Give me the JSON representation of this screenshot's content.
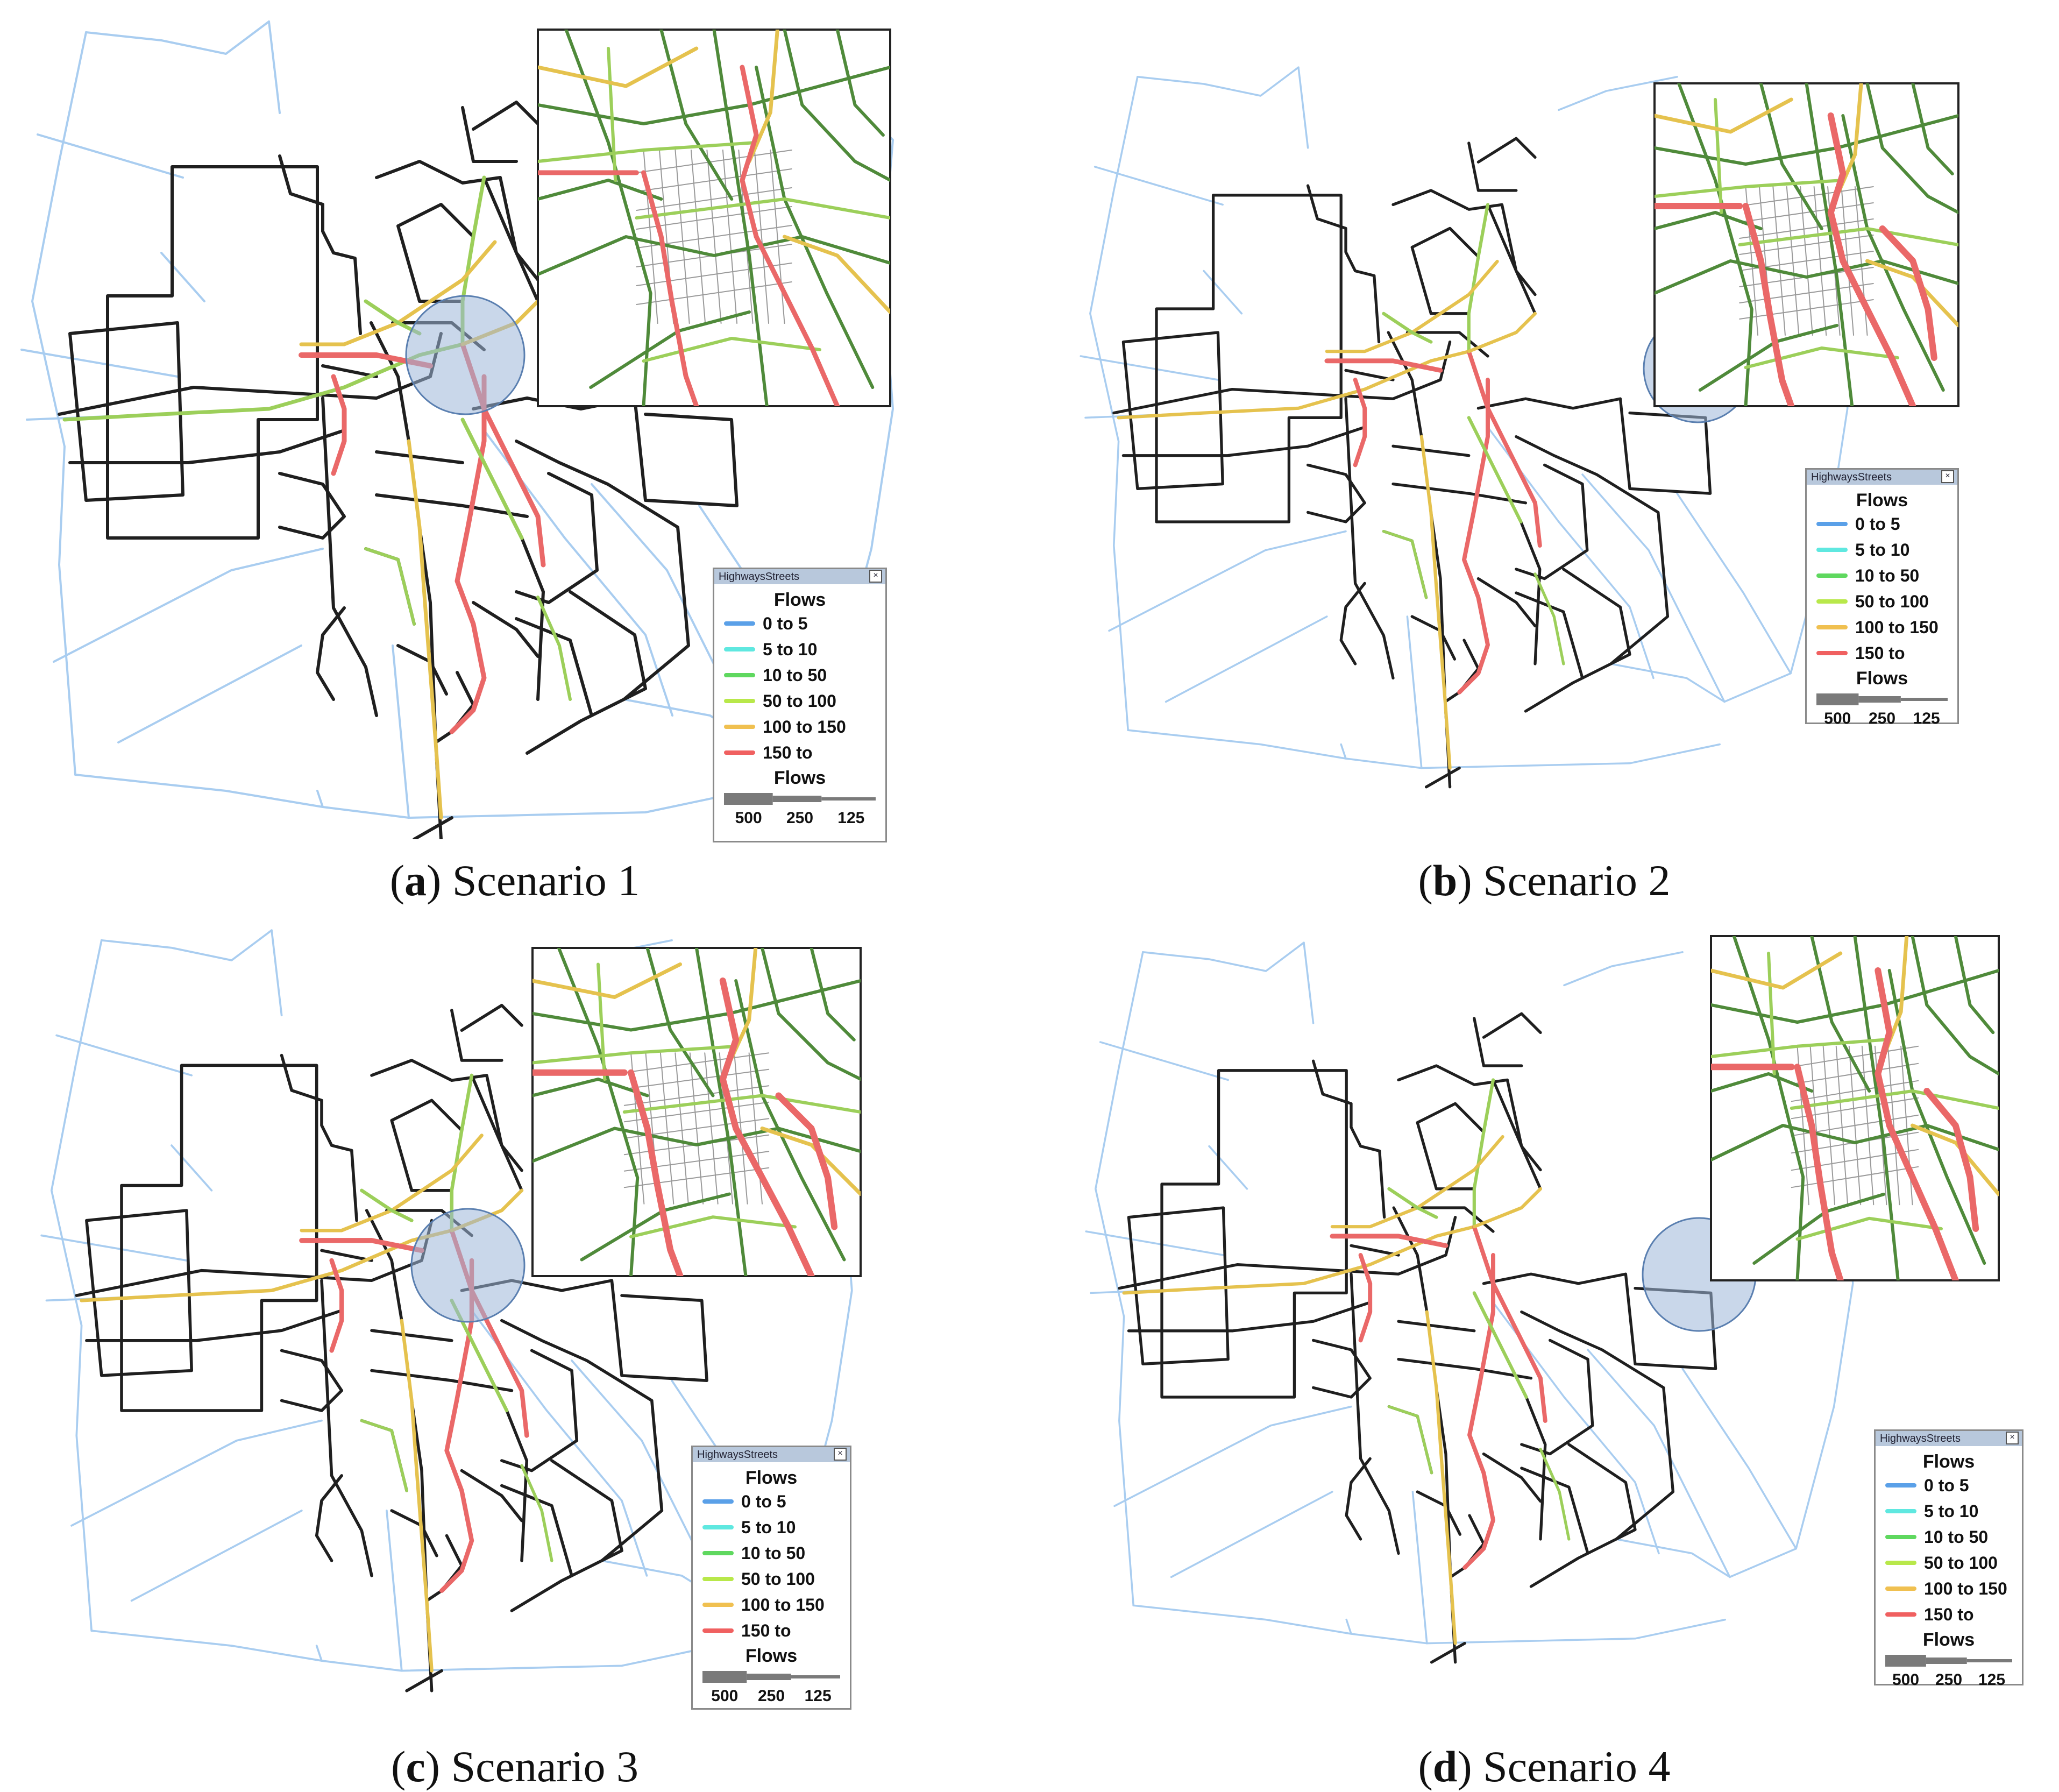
{
  "panels": [
    {
      "letter": "a",
      "caption": "Scenario 1"
    },
    {
      "letter": "b",
      "caption": "Scenario 2"
    },
    {
      "letter": "c",
      "caption": "Scenario 3"
    },
    {
      "letter": "d",
      "caption": "Scenario 4"
    }
  ],
  "legend": {
    "window_title": "HighwaysStreets",
    "close_glyph": "×",
    "heading": "Flows",
    "classes": [
      {
        "label": "0 to 5",
        "color": "#5aa0e8"
      },
      {
        "label": "5 to 10",
        "color": "#5fe8e0"
      },
      {
        "label": "10 to 50",
        "color": "#5fd85f"
      },
      {
        "label": "50 to 100",
        "color": "#b8e84a"
      },
      {
        "label": "100 to 150",
        "color": "#f0c050"
      },
      {
        "label": "150 to",
        "color": "#f06060"
      }
    ],
    "size_heading": "Flows",
    "size_values": [
      "500",
      "250",
      "125"
    ]
  },
  "colors": {
    "highway": "#a9cdf0",
    "street": "#1f1f1f",
    "street_green": "#4f8a3a",
    "flow_light": "#9ccf5a",
    "flow_yellow": "#e5c24e",
    "flow_red": "#ea6868",
    "focus_circle": "#9db6d8",
    "inset_bg": "#ffffff",
    "grid_gray": "#9a9a9a"
  },
  "icons": {
    "close": "close-icon",
    "focus": "focus-area-circle"
  }
}
